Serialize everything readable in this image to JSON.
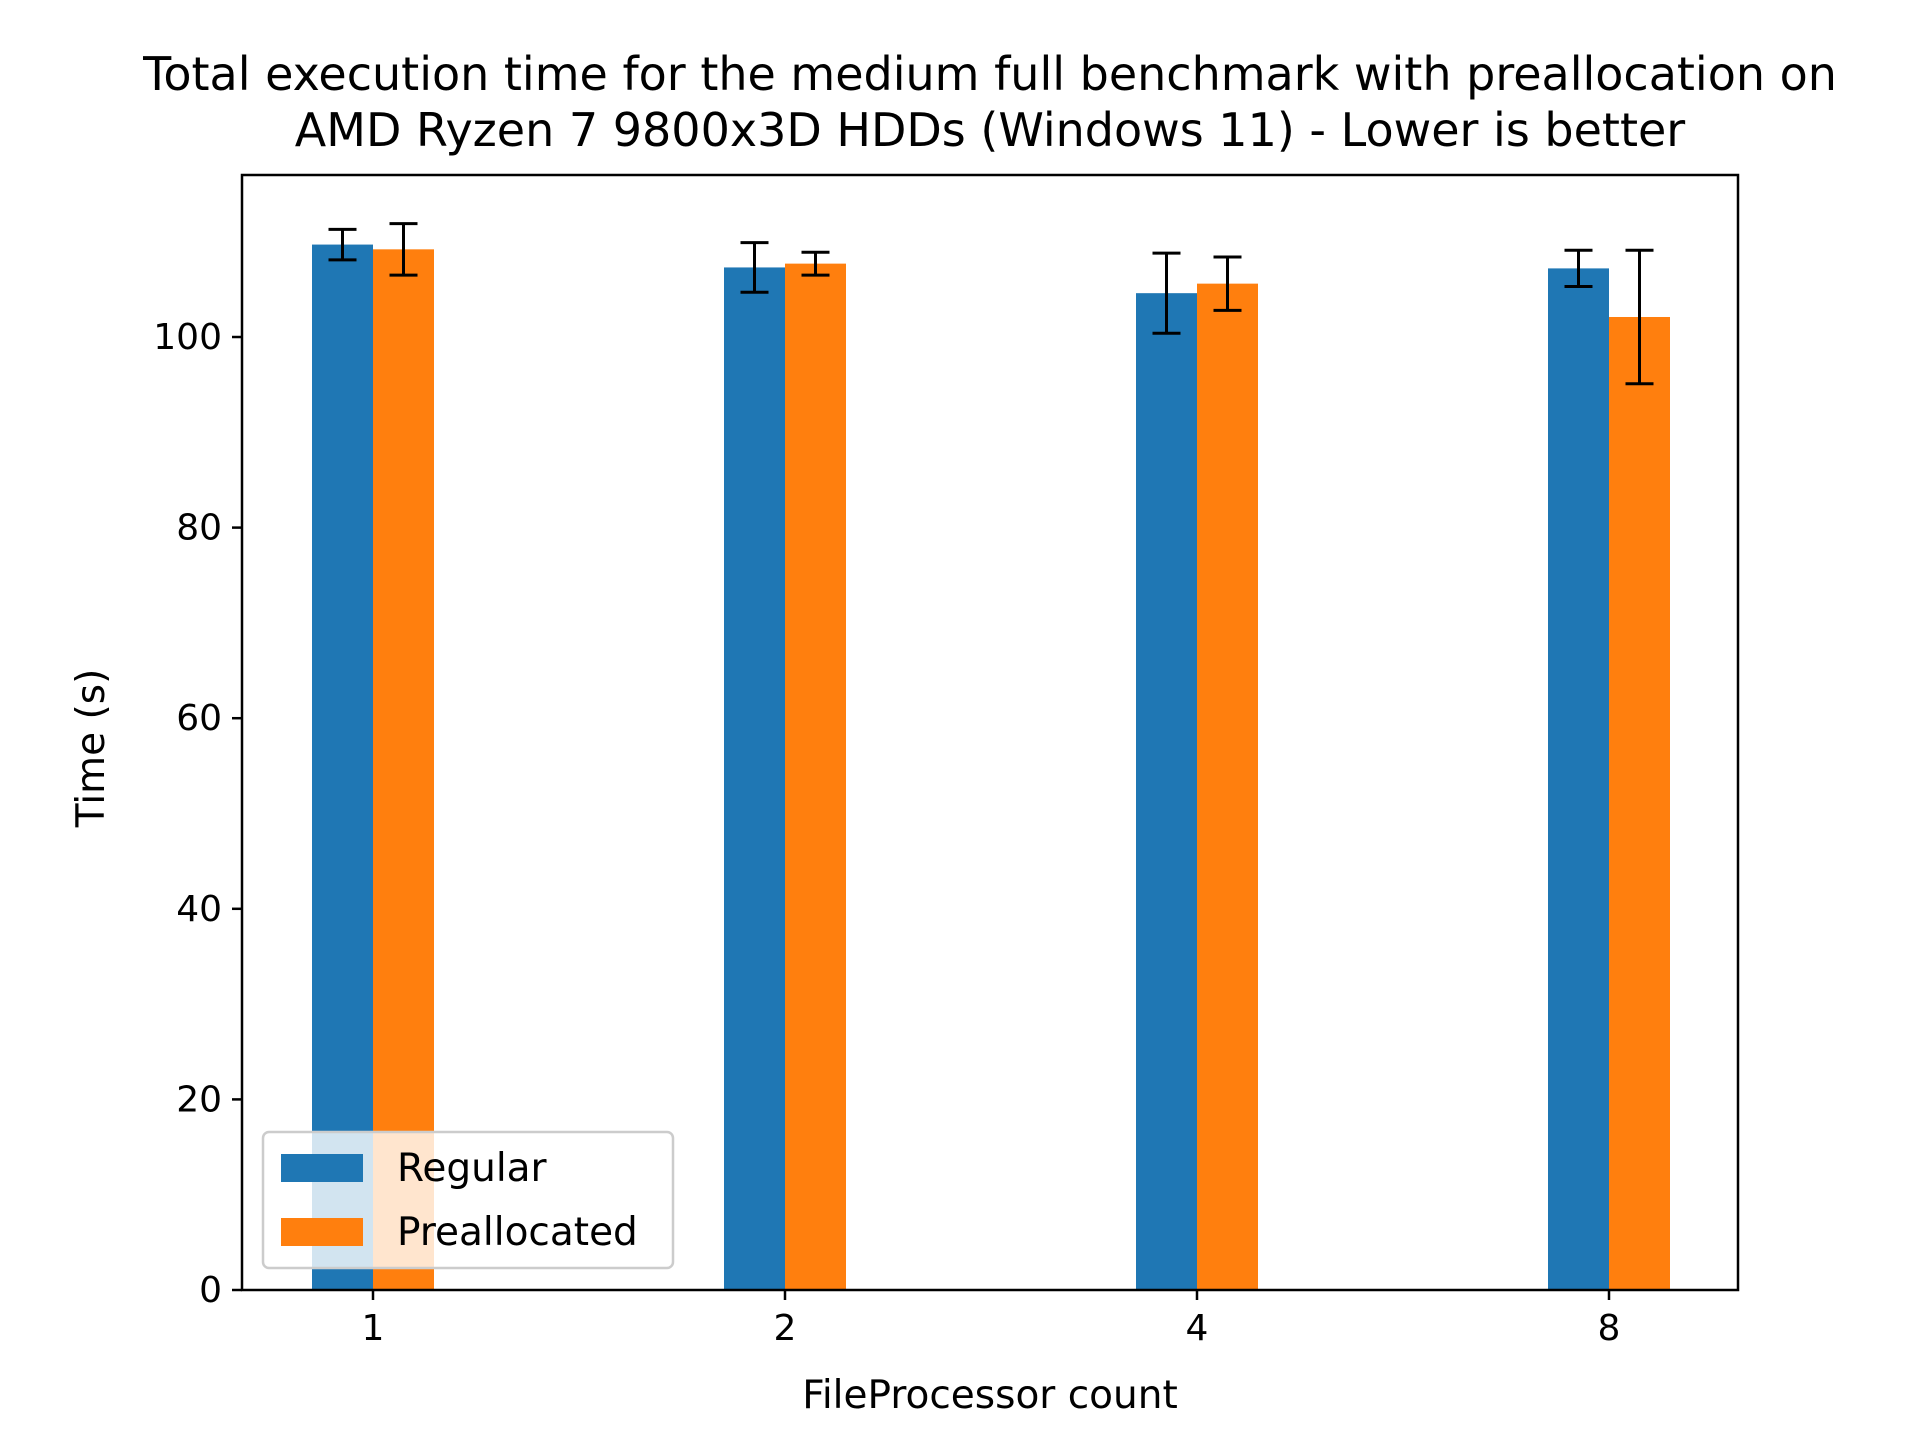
{
  "chart_data": {
    "type": "bar",
    "title": "Total execution time for the medium full benchmark with preallocation on",
    "subtitle": "AMD Ryzen 7 9800x3D HDDs (Windows 11) - Lower is better",
    "xlabel": "FileProcessor count",
    "ylabel": "Time (s)",
    "categories": [
      "1",
      "2",
      "4",
      "8"
    ],
    "ylim": [
      0,
      117
    ],
    "yticks": [
      0,
      20,
      40,
      60,
      80,
      100
    ],
    "grid": false,
    "legend_position": "lower-left",
    "series": [
      {
        "name": "Regular",
        "color": "#1f77b4",
        "values": [
          109.7,
          107.3,
          104.6,
          107.2
        ],
        "error": [
          1.6,
          2.6,
          4.2,
          1.9
        ]
      },
      {
        "name": "Preallocated",
        "color": "#ff7f0e",
        "values": [
          109.2,
          107.7,
          105.6,
          102.1
        ],
        "error": [
          2.7,
          1.2,
          2.8,
          7.0
        ]
      }
    ]
  }
}
